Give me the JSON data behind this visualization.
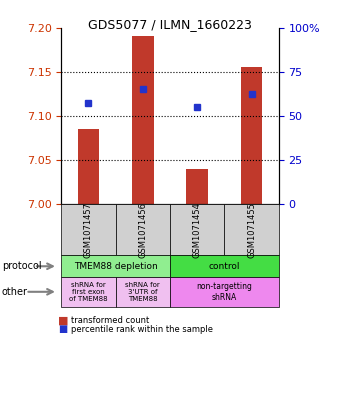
{
  "title": "GDS5077 / ILMN_1660223",
  "samples": [
    "GSM1071457",
    "GSM1071456",
    "GSM1071454",
    "GSM1071455"
  ],
  "bar_bottoms": [
    7.0,
    7.0,
    7.0,
    7.0
  ],
  "bar_tops": [
    7.085,
    7.19,
    7.04,
    7.155
  ],
  "blue_y": [
    7.115,
    7.13,
    7.11,
    7.125
  ],
  "ylim": [
    7.0,
    7.2
  ],
  "yticks_left": [
    7.0,
    7.05,
    7.1,
    7.15,
    7.2
  ],
  "yticks_right": [
    0,
    25,
    50,
    75,
    100
  ],
  "bar_color": "#c0392b",
  "blue_color": "#2233cc",
  "protocol_labels": [
    "TMEM88 depletion",
    "control"
  ],
  "protocol_color_left": "#90ee90",
  "protocol_color_right": "#44dd44",
  "other_labels": [
    "shRNA for\nfirst exon\nof TMEM88",
    "shRNA for\n3'UTR of\nTMEM88",
    "non-targetting\nshRNA"
  ],
  "other_color_left": "#f0c0f0",
  "other_color_right": "#ee88ee",
  "legend_labels": [
    "transformed count",
    "percentile rank within the sample"
  ],
  "legend_colors": [
    "#c0392b",
    "#2233cc"
  ],
  "left_label_color": "#cc3300",
  "right_label_color": "#0000cc"
}
